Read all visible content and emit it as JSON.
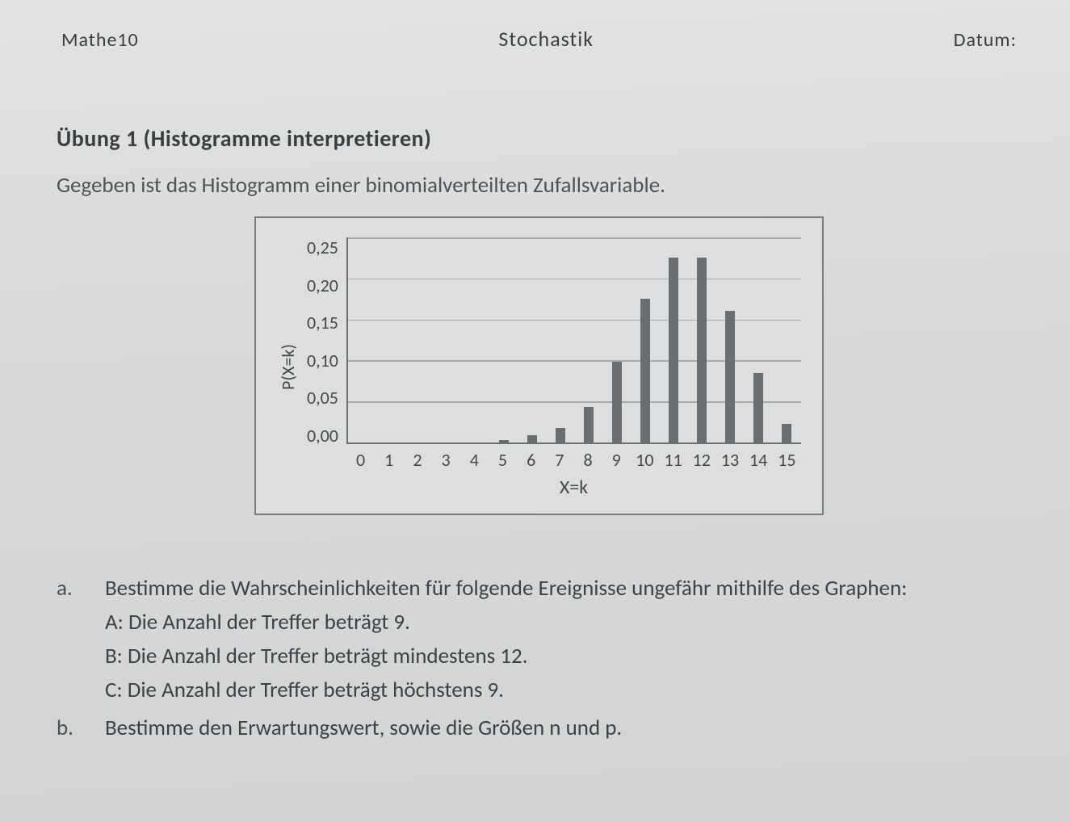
{
  "header": {
    "left": "Mathe10",
    "center": "Stochastik",
    "right": "Datum:"
  },
  "exercise": {
    "title": "Übung 1 (Histogramme interpretieren)",
    "intro": "Gegeben ist das Histogramm einer binomialverteilten Zufallsvariable."
  },
  "chart": {
    "type": "histogram",
    "ylabel": "P(X=k)",
    "xlabel": "X=k",
    "ylim": [
      0.0,
      0.25
    ],
    "ytick_step": 0.05,
    "ytick_labels": [
      "0,25",
      "0,20",
      "0,15",
      "0,10",
      "0,05",
      "0,00"
    ],
    "categories": [
      "0",
      "1",
      "2",
      "3",
      "4",
      "5",
      "6",
      "7",
      "8",
      "9",
      "10",
      "11",
      "12",
      "13",
      "14",
      "15"
    ],
    "values": [
      0.0,
      0.0,
      0.0,
      0.0,
      0.0,
      0.003,
      0.009,
      0.018,
      0.043,
      0.098,
      0.175,
      0.225,
      0.225,
      0.16,
      0.085,
      0.023
    ],
    "bar_color": "#6a6e70",
    "grid_color": "#a7aaab",
    "axis_color": "#6e7172",
    "background_color": "#dcdedf",
    "frame_border_color": "#7a7d7e",
    "bar_width": 0.34,
    "label_fontsize": 22
  },
  "tasks": {
    "a_letter": "a.",
    "a_text": "Bestimme die Wahrscheinlichkeiten für folgende Ereignisse ungefähr mithilfe des Graphen:",
    "A": "A: Die Anzahl der Treffer beträgt 9.",
    "B": "B: Die Anzahl der Treffer beträgt mindestens 12.",
    "C": "C: Die Anzahl der Treffer beträgt höchstens 9.",
    "b_letter": "b.",
    "b_text": "Bestimme den Erwartungswert, sowie die Größen n und p."
  }
}
